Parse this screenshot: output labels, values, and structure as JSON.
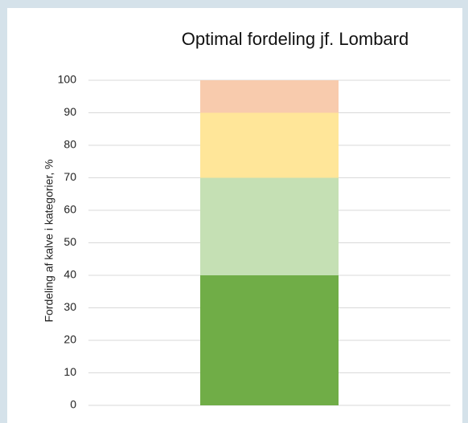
{
  "chart_data": {
    "type": "bar",
    "stacked": true,
    "title": "Optimal fordeling jf. Lombard",
    "y_label": "Fordeling af kalve i kategorier, %",
    "categories": [
      null
    ],
    "series": [
      {
        "color": "#70ad47",
        "values": [
          40
        ]
      },
      {
        "color": "#c5e0b4",
        "values": [
          30
        ]
      },
      {
        "color": "#ffe699",
        "values": [
          20
        ]
      },
      {
        "color": "#f8cbad",
        "values": [
          10
        ]
      }
    ],
    "ylim": [
      0,
      100
    ],
    "yticks": [
      0,
      10,
      20,
      30,
      40,
      50,
      60,
      70,
      80,
      90,
      100
    ],
    "grid": true
  }
}
